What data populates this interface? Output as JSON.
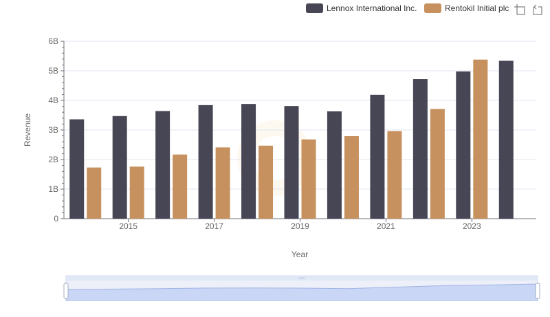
{
  "toolbox": {
    "zoom_icon": "zoom-icon",
    "restore_icon": "restore-icon"
  },
  "chart_data": {
    "type": "bar",
    "xlabel": "Year",
    "ylabel": "Revenue",
    "categories": [
      "2014",
      "2015",
      "2016",
      "2017",
      "2018",
      "2019",
      "2020",
      "2021",
      "2022",
      "2023",
      "2024"
    ],
    "x_tick_labels": [
      "2015",
      "2017",
      "2019",
      "2021",
      "2023"
    ],
    "y_tick_labels": [
      "0",
      "1B",
      "2B",
      "3B",
      "4B",
      "5B",
      "6B"
    ],
    "ylim": [
      0,
      6000000000
    ],
    "grid": true,
    "legend_position": "top-right",
    "data_zoom": {
      "range": [
        0,
        100
      ]
    },
    "series": [
      {
        "name": "Lennox International Inc.",
        "color": "#464655",
        "values": [
          3360000000,
          3470000000,
          3640000000,
          3840000000,
          3880000000,
          3810000000,
          3630000000,
          4190000000,
          4720000000,
          4980000000,
          5340000000
        ]
      },
      {
        "name": "Rentokil Initial plc",
        "color": "#c6915f",
        "values": [
          1730000000,
          1760000000,
          2170000000,
          2410000000,
          2470000000,
          2680000000,
          2790000000,
          2960000000,
          3710000000,
          5380000000,
          null
        ]
      }
    ]
  }
}
